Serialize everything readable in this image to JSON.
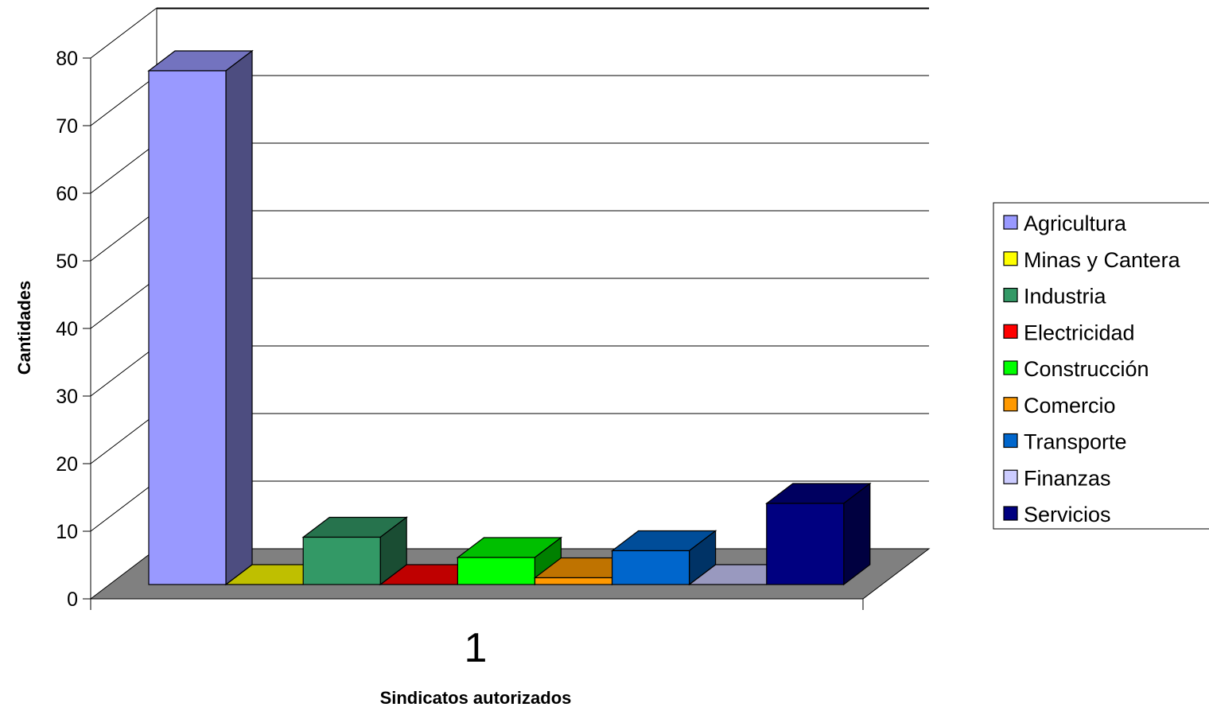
{
  "chart_data": {
    "type": "bar",
    "style": "3d-clustered-column",
    "categories": [
      "1"
    ],
    "series": [
      {
        "name": "Agricultura",
        "values": [
          76
        ],
        "color": "#9999FF"
      },
      {
        "name": "Minas y Cantera",
        "values": [
          0
        ],
        "color": "#FFFF00"
      },
      {
        "name": "Industria",
        "values": [
          7
        ],
        "color": "#339966"
      },
      {
        "name": "Electricidad",
        "values": [
          0
        ],
        "color": "#FF0000"
      },
      {
        "name": "Construcción",
        "values": [
          4
        ],
        "color": "#00FF00"
      },
      {
        "name": "Comercio",
        "values": [
          1
        ],
        "color": "#FF9900"
      },
      {
        "name": "Transporte",
        "values": [
          5
        ],
        "color": "#0066CC"
      },
      {
        "name": "Finanzas",
        "values": [
          0
        ],
        "color": "#CCCCFF"
      },
      {
        "name": "Servicios",
        "values": [
          12
        ],
        "color": "#000080"
      }
    ],
    "xlabel": "Sindicatos autorizados",
    "ylabel": "Cantidades",
    "ylim": [
      0,
      80
    ],
    "yticks": [
      "0",
      "10",
      "20",
      "30",
      "40",
      "50",
      "60",
      "70",
      "80"
    ],
    "grid": true,
    "floor_color": "#808080",
    "legend_position": "right"
  }
}
